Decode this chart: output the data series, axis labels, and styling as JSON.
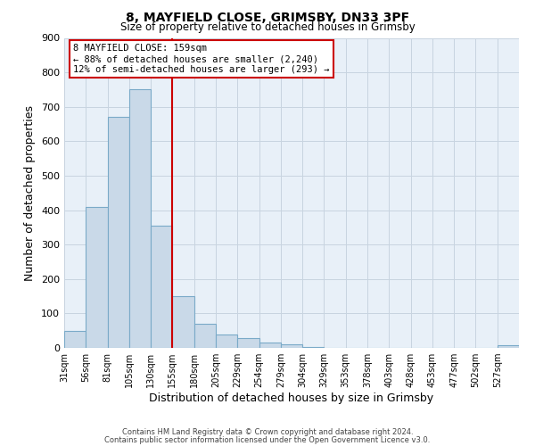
{
  "title": "8, MAYFIELD CLOSE, GRIMSBY, DN33 3PF",
  "subtitle": "Size of property relative to detached houses in Grimsby",
  "xlabel": "Distribution of detached houses by size in Grimsby",
  "ylabel": "Number of detached properties",
  "bin_labels": [
    "31sqm",
    "56sqm",
    "81sqm",
    "105sqm",
    "130sqm",
    "155sqm",
    "180sqm",
    "205sqm",
    "229sqm",
    "254sqm",
    "279sqm",
    "304sqm",
    "329sqm",
    "353sqm",
    "378sqm",
    "403sqm",
    "428sqm",
    "453sqm",
    "477sqm",
    "502sqm",
    "527sqm"
  ],
  "bar_heights": [
    50,
    410,
    670,
    750,
    355,
    150,
    70,
    38,
    28,
    15,
    10,
    2,
    0,
    0,
    0,
    0,
    0,
    0,
    0,
    0,
    8
  ],
  "bar_color": "#c9d9e8",
  "bar_edge_color": "#7aaac8",
  "vline_x": 5,
  "vline_color": "#cc0000",
  "ylim": [
    0,
    900
  ],
  "yticks": [
    0,
    100,
    200,
    300,
    400,
    500,
    600,
    700,
    800,
    900
  ],
  "annotation_title": "8 MAYFIELD CLOSE: 159sqm",
  "annotation_line1": "← 88% of detached houses are smaller (2,240)",
  "annotation_line2": "12% of semi-detached houses are larger (293) →",
  "annotation_box_color": "#ffffff",
  "annotation_box_edge": "#cc0000",
  "footer_line1": "Contains HM Land Registry data © Crown copyright and database right 2024.",
  "footer_line2": "Contains public sector information licensed under the Open Government Licence v3.0.",
  "background_color": "#ffffff",
  "plot_bg_color": "#e8f0f8",
  "grid_color": "#c8d4e0"
}
